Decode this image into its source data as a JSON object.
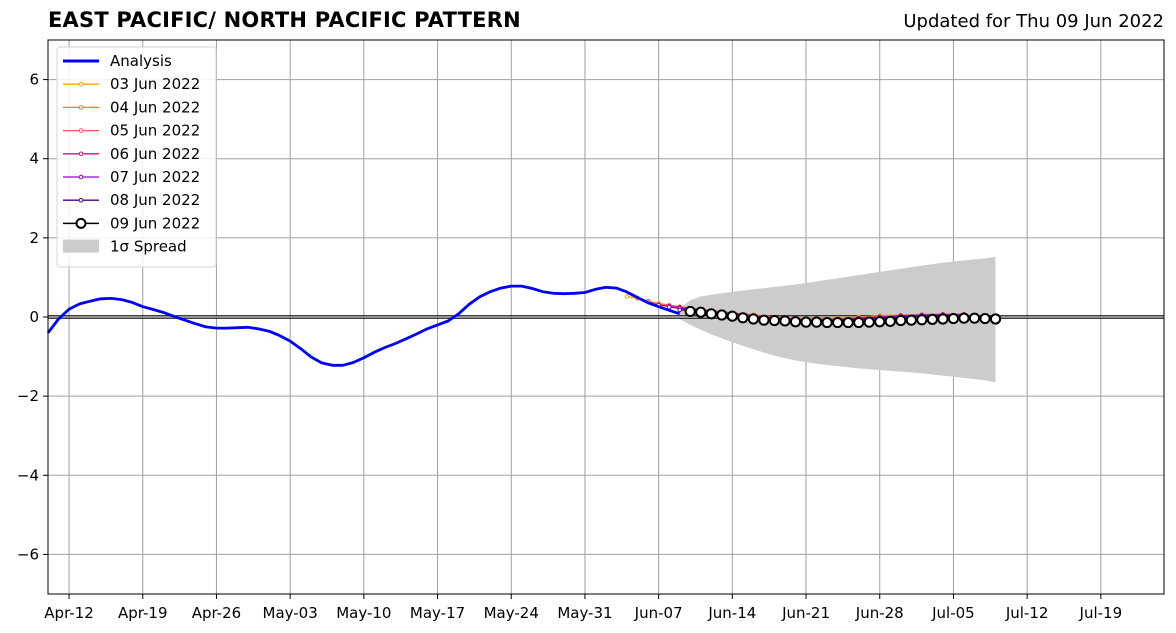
{
  "header": {
    "title": "EAST PACIFIC/ NORTH PACIFIC PATTERN",
    "updated": "Updated for Thu 09 Jun 2022"
  },
  "chart_data": {
    "type": "line",
    "title": "EAST PACIFIC/ NORTH PACIFIC PATTERN",
    "subtitle": "Updated for Thu 09 Jun 2022",
    "xlabel": "",
    "ylabel": "",
    "x_start_date": "2022-04-10",
    "x_end_date": "2022-07-25",
    "ylim": [
      -7,
      7
    ],
    "grid": true,
    "legend_position": "top-left",
    "x_tick_labels": [
      "Apr-12",
      "Apr-19",
      "Apr-26",
      "May-03",
      "May-10",
      "May-17",
      "May-24",
      "May-31",
      "Jun-07",
      "Jun-14",
      "Jun-21",
      "Jun-28",
      "Jul-05",
      "Jul-12",
      "Jul-19"
    ],
    "x_tick_dates": [
      "2022-04-12",
      "2022-04-19",
      "2022-04-26",
      "2022-05-03",
      "2022-05-10",
      "2022-05-17",
      "2022-05-24",
      "2022-05-31",
      "2022-06-07",
      "2022-06-14",
      "2022-06-21",
      "2022-06-28",
      "2022-07-05",
      "2022-07-12",
      "2022-07-19"
    ],
    "y_ticks": [
      -6,
      -4,
      -2,
      0,
      2,
      4,
      6
    ],
    "y_tick_labels": [
      "−6",
      "−4",
      "−2",
      "0",
      "2",
      "4",
      "6"
    ],
    "legend": [
      "Analysis",
      "03 Jun 2022",
      "04 Jun 2022",
      "05 Jun 2022",
      "06 Jun 2022",
      "07 Jun 2022",
      "08 Jun 2022",
      "09 Jun 2022",
      "1σ Spread"
    ],
    "analysis": {
      "name": "Analysis",
      "color": "#0000ff",
      "x": [
        "2022-04-10",
        "2022-04-11",
        "2022-04-12",
        "2022-04-13",
        "2022-04-14",
        "2022-04-15",
        "2022-04-16",
        "2022-04-17",
        "2022-04-18",
        "2022-04-19",
        "2022-04-20",
        "2022-04-21",
        "2022-04-22",
        "2022-04-23",
        "2022-04-24",
        "2022-04-25",
        "2022-04-26",
        "2022-04-27",
        "2022-04-28",
        "2022-04-29",
        "2022-04-30",
        "2022-05-01",
        "2022-05-02",
        "2022-05-03",
        "2022-05-04",
        "2022-05-05",
        "2022-05-06",
        "2022-05-07",
        "2022-05-08",
        "2022-05-09",
        "2022-05-10",
        "2022-05-11",
        "2022-05-12",
        "2022-05-13",
        "2022-05-14",
        "2022-05-15",
        "2022-05-16",
        "2022-05-17",
        "2022-05-18",
        "2022-05-19",
        "2022-05-20",
        "2022-05-21",
        "2022-05-22",
        "2022-05-23",
        "2022-05-24",
        "2022-05-25",
        "2022-05-26",
        "2022-05-27",
        "2022-05-28",
        "2022-05-29",
        "2022-05-30",
        "2022-05-31",
        "2022-06-01",
        "2022-06-02",
        "2022-06-03",
        "2022-06-04",
        "2022-06-05",
        "2022-06-06",
        "2022-06-07",
        "2022-06-08",
        "2022-06-09"
      ],
      "y": [
        -0.4,
        -0.05,
        0.2,
        0.33,
        0.4,
        0.46,
        0.47,
        0.44,
        0.37,
        0.26,
        0.19,
        0.11,
        0.01,
        -0.08,
        -0.17,
        -0.25,
        -0.28,
        -0.28,
        -0.27,
        -0.26,
        -0.3,
        -0.36,
        -0.47,
        -0.61,
        -0.8,
        -1.01,
        -1.16,
        -1.22,
        -1.22,
        -1.15,
        -1.03,
        -0.89,
        -0.77,
        -0.67,
        -0.55,
        -0.43,
        -0.3,
        -0.2,
        -0.1,
        0.08,
        0.32,
        0.51,
        0.64,
        0.73,
        0.78,
        0.78,
        0.72,
        0.64,
        0.6,
        0.59,
        0.6,
        0.62,
        0.7,
        0.75,
        0.73,
        0.63,
        0.49,
        0.36,
        0.26,
        0.17,
        0.08
      ]
    },
    "forecasts": [
      {
        "name": "03 Jun 2022",
        "color": "#ffa500",
        "x": [
          "2022-06-04",
          "2022-06-05",
          "2022-06-06",
          "2022-06-07",
          "2022-06-08",
          "2022-06-09",
          "2022-06-10",
          "2022-06-12",
          "2022-06-14",
          "2022-06-16",
          "2022-06-18",
          "2022-06-20",
          "2022-06-22",
          "2022-06-24",
          "2022-06-26",
          "2022-06-28",
          "2022-06-30",
          "2022-07-02",
          "2022-07-04"
        ],
        "y": [
          0.52,
          0.47,
          0.4,
          0.32,
          0.26,
          0.22,
          0.2,
          0.15,
          0.1,
          0.05,
          0.0,
          -0.03,
          -0.04,
          -0.03,
          0.0,
          0.03,
          0.05,
          0.05,
          0.05
        ]
      },
      {
        "name": "04 Jun 2022",
        "color": "#ff7f0e",
        "x": [
          "2022-06-05",
          "2022-06-06",
          "2022-06-07",
          "2022-06-08",
          "2022-06-09",
          "2022-06-10",
          "2022-06-12",
          "2022-06-14",
          "2022-06-16",
          "2022-06-18",
          "2022-06-20",
          "2022-06-22",
          "2022-06-24",
          "2022-06-26",
          "2022-06-28",
          "2022-06-30",
          "2022-07-02",
          "2022-07-04",
          "2022-07-05"
        ],
        "y": [
          0.48,
          0.4,
          0.34,
          0.3,
          0.26,
          0.22,
          0.16,
          0.1,
          0.05,
          0.0,
          -0.04,
          -0.05,
          -0.04,
          -0.01,
          0.02,
          0.04,
          0.05,
          0.05,
          0.05
        ]
      },
      {
        "name": "05 Jun 2022",
        "color": "#e75a5a",
        "x": [
          "2022-06-06",
          "2022-06-07",
          "2022-06-08",
          "2022-06-09",
          "2022-06-10",
          "2022-06-12",
          "2022-06-14",
          "2022-06-16",
          "2022-06-18",
          "2022-06-20",
          "2022-06-22",
          "2022-06-24",
          "2022-06-26",
          "2022-06-28",
          "2022-06-30",
          "2022-07-02",
          "2022-07-04",
          "2022-07-06"
        ],
        "y": [
          0.38,
          0.32,
          0.28,
          0.25,
          0.22,
          0.16,
          0.1,
          0.04,
          -0.01,
          -0.05,
          -0.06,
          -0.05,
          -0.02,
          0.01,
          0.04,
          0.06,
          0.07,
          0.07
        ]
      },
      {
        "name": "06 Jun 2022",
        "color": "#c71585",
        "x": [
          "2022-06-07",
          "2022-06-08",
          "2022-06-09",
          "2022-06-10",
          "2022-06-12",
          "2022-06-14",
          "2022-06-16",
          "2022-06-18",
          "2022-06-20",
          "2022-06-22",
          "2022-06-24",
          "2022-06-26",
          "2022-06-28",
          "2022-06-30",
          "2022-07-02",
          "2022-07-04",
          "2022-07-06"
        ],
        "y": [
          0.3,
          0.27,
          0.24,
          0.21,
          0.15,
          0.09,
          0.03,
          -0.02,
          -0.06,
          -0.07,
          -0.06,
          -0.03,
          0.0,
          0.03,
          0.05,
          0.06,
          0.06
        ]
      },
      {
        "name": "07 Jun 2022",
        "color": "#9400d3",
        "x": [
          "2022-06-08",
          "2022-06-09",
          "2022-06-10",
          "2022-06-12",
          "2022-06-14",
          "2022-06-16",
          "2022-06-18",
          "2022-06-20",
          "2022-06-22",
          "2022-06-24",
          "2022-06-26",
          "2022-06-28",
          "2022-06-30",
          "2022-07-02",
          "2022-07-04",
          "2022-07-06"
        ],
        "y": [
          0.25,
          0.22,
          0.19,
          0.13,
          0.07,
          0.02,
          -0.03,
          -0.07,
          -0.08,
          -0.07,
          -0.04,
          -0.01,
          0.02,
          0.04,
          0.05,
          0.05
        ]
      },
      {
        "name": "08 Jun 2022",
        "color": "#4b0082",
        "x": [
          "2022-06-09",
          "2022-06-10",
          "2022-06-12",
          "2022-06-14",
          "2022-06-16",
          "2022-06-18",
          "2022-06-20",
          "2022-06-22",
          "2022-06-24",
          "2022-06-26",
          "2022-06-28",
          "2022-06-30",
          "2022-07-02",
          "2022-07-04",
          "2022-07-06"
        ],
        "y": [
          0.18,
          0.16,
          0.1,
          0.05,
          0.0,
          -0.05,
          -0.09,
          -0.1,
          -0.09,
          -0.06,
          -0.03,
          0.0,
          0.02,
          0.03,
          0.03
        ]
      },
      {
        "name": "09 Jun 2022",
        "color": "#000000",
        "x": [
          "2022-06-10",
          "2022-06-11",
          "2022-06-12",
          "2022-06-13",
          "2022-06-14",
          "2022-06-15",
          "2022-06-16",
          "2022-06-17",
          "2022-06-18",
          "2022-06-19",
          "2022-06-20",
          "2022-06-21",
          "2022-06-22",
          "2022-06-23",
          "2022-06-24",
          "2022-06-25",
          "2022-06-26",
          "2022-06-27",
          "2022-06-28",
          "2022-06-29",
          "2022-06-30",
          "2022-07-01",
          "2022-07-02",
          "2022-07-03",
          "2022-07-04",
          "2022-07-05",
          "2022-07-06",
          "2022-07-07",
          "2022-07-08",
          "2022-07-09"
        ],
        "y": [
          0.14,
          0.12,
          0.08,
          0.05,
          0.02,
          -0.02,
          -0.05,
          -0.08,
          -0.09,
          -0.1,
          -0.12,
          -0.13,
          -0.13,
          -0.14,
          -0.14,
          -0.14,
          -0.14,
          -0.13,
          -0.12,
          -0.11,
          -0.09,
          -0.08,
          -0.07,
          -0.06,
          -0.05,
          -0.04,
          -0.03,
          -0.03,
          -0.04,
          -0.05
        ]
      }
    ],
    "spread": {
      "name": "1σ Spread",
      "color": "#cccccc",
      "x": [
        "2022-06-09",
        "2022-06-10",
        "2022-06-11",
        "2022-06-12",
        "2022-06-14",
        "2022-06-16",
        "2022-06-18",
        "2022-06-20",
        "2022-06-22",
        "2022-06-24",
        "2022-06-26",
        "2022-06-28",
        "2022-06-30",
        "2022-07-02",
        "2022-07-04",
        "2022-07-06",
        "2022-07-08",
        "2022-07-09"
      ],
      "upper": [
        0.22,
        0.42,
        0.52,
        0.56,
        0.64,
        0.7,
        0.76,
        0.82,
        0.9,
        0.98,
        1.06,
        1.14,
        1.22,
        1.3,
        1.37,
        1.43,
        1.48,
        1.52
      ],
      "lower": [
        -0.05,
        -0.2,
        -0.32,
        -0.44,
        -0.64,
        -0.82,
        -0.98,
        -1.1,
        -1.18,
        -1.24,
        -1.3,
        -1.34,
        -1.38,
        -1.42,
        -1.48,
        -1.54,
        -1.6,
        -1.65
      ]
    }
  }
}
